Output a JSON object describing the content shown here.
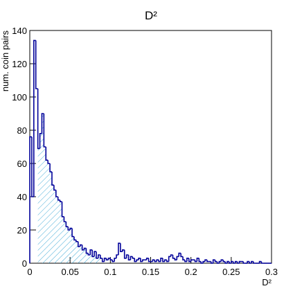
{
  "chart_data": {
    "type": "histogram",
    "title": "D²",
    "x_label": "D²",
    "y_label": "num. coin pairs",
    "bins": [
      0,
      0.0025,
      0.005,
      0.0075,
      0.01,
      0.0125,
      0.015,
      0.0175,
      0.02,
      0.0225,
      0.025,
      0.0275,
      0.03,
      0.0325,
      0.035,
      0.0375,
      0.04,
      0.0425,
      0.045,
      0.0475,
      0.05,
      0.0525,
      0.055,
      0.0575,
      0.06,
      0.0625,
      0.065,
      0.0675,
      0.07,
      0.0725,
      0.075,
      0.0775,
      0.08,
      0.0825,
      0.085,
      0.0875,
      0.09,
      0.0925,
      0.095,
      0.0975,
      0.1,
      0.1025,
      0.105,
      0.1075,
      0.11,
      0.1125,
      0.115,
      0.1175,
      0.12,
      0.1225,
      0.125,
      0.1275,
      0.13,
      0.1325,
      0.135,
      0.1375,
      0.14,
      0.1425,
      0.145,
      0.1475,
      0.15,
      0.1525,
      0.155,
      0.1575,
      0.16,
      0.1625,
      0.165,
      0.1675,
      0.17,
      0.1725,
      0.175,
      0.1775,
      0.18,
      0.1825,
      0.185,
      0.1875,
      0.19,
      0.1925,
      0.195,
      0.1975,
      0.2,
      0.2025,
      0.205,
      0.2075,
      0.21,
      0.2125,
      0.215,
      0.2175,
      0.22,
      0.2225,
      0.225,
      0.2275,
      0.23,
      0.2325,
      0.235,
      0.2375,
      0.24,
      0.2425,
      0.245,
      0.2475,
      0.25,
      0.2525,
      0.255,
      0.2575,
      0.26,
      0.2625,
      0.265,
      0.2675,
      0.27,
      0.2725,
      0.275,
      0.2775,
      0.28,
      0.2825,
      0.285,
      0.2875,
      0.29,
      0.2925,
      0.295,
      0.2975,
      0.3
    ],
    "values": [
      76,
      40,
      134,
      105,
      69,
      78,
      90,
      70,
      62,
      60,
      55,
      47,
      44,
      40,
      38,
      37,
      28,
      25,
      22,
      20,
      21,
      16,
      14,
      13,
      10,
      11,
      8,
      9,
      6,
      5,
      8,
      4,
      7,
      3,
      5,
      3,
      1,
      3,
      2,
      3,
      2,
      1,
      3,
      5,
      12,
      7,
      8,
      3,
      5,
      2,
      4,
      3,
      1,
      2,
      3,
      1,
      2,
      2,
      3,
      1,
      1,
      2,
      1,
      2,
      1,
      3,
      1,
      2,
      1,
      4,
      5,
      3,
      2,
      4,
      6,
      4,
      2,
      1,
      3,
      1,
      2,
      2,
      1,
      3,
      1,
      0,
      1,
      2,
      1,
      1,
      0,
      2,
      1,
      0,
      1,
      2,
      1,
      0,
      1,
      0,
      1,
      0,
      1,
      0,
      1,
      1,
      0,
      0,
      1,
      0,
      1,
      0,
      0,
      0,
      1,
      0,
      0,
      0,
      0,
      0
    ],
    "color": "#000099",
    "hatch_color": "#3fa9d6",
    "hatch_range": [
      0.01,
      0.0875
    ],
    "xlim": [
      0,
      0.3
    ],
    "xticks": [
      0,
      0.05,
      0.1,
      0.15,
      0.2,
      0.25,
      0.3
    ],
    "ylim": [
      0,
      140
    ],
    "yticks": [
      0,
      20,
      40,
      60,
      80,
      100,
      120,
      140
    ]
  }
}
